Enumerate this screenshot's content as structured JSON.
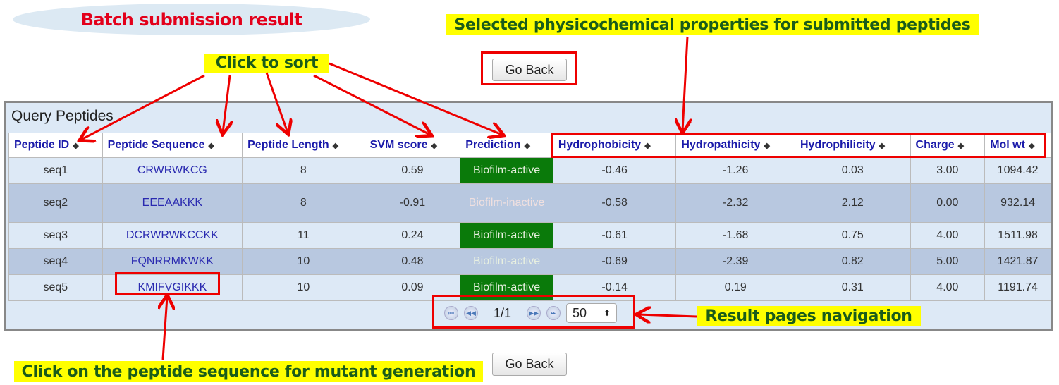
{
  "annotations": {
    "title": "Batch submission result",
    "click_to_sort": "Click to sort",
    "selected_props": "Selected physicochemical properties for submitted peptides",
    "navigation": "Result pages navigation",
    "mutant": "Click on the peptide sequence for mutant generation"
  },
  "go_back": "Go Back",
  "table": {
    "caption": "Query Peptides",
    "headers": [
      "Peptide ID",
      "Peptide Sequence",
      "Peptide Length",
      "SVM score",
      "Prediction",
      "Hydrophobicity",
      "Hydropathicity",
      "Hydrophilicity",
      "Charge",
      "Mol wt"
    ],
    "rows": [
      [
        "seq1",
        "CRWRWKCG",
        "8",
        "0.59",
        "Biofilm-active",
        "-0.46",
        "-1.26",
        "0.03",
        "3.00",
        "1094.42"
      ],
      [
        "seq2",
        "EEEAAKKK",
        "8",
        "-0.91",
        "Biofilm-inactive",
        "-0.58",
        "-2.32",
        "2.12",
        "0.00",
        "932.14"
      ],
      [
        "seq3",
        "DCRWRWKCCKK",
        "11",
        "0.24",
        "Biofilm-active",
        "-0.61",
        "-1.68",
        "0.75",
        "4.00",
        "1511.98"
      ],
      [
        "seq4",
        "FQNRRMKWKK",
        "10",
        "0.48",
        "Biofilm-active",
        "-0.69",
        "-2.39",
        "0.82",
        "5.00",
        "1421.87"
      ],
      [
        "seq5",
        "KMIFVGIKKK",
        "10",
        "0.09",
        "Biofilm-active",
        "-0.14",
        "0.19",
        "0.31",
        "4.00",
        "1191.74"
      ]
    ]
  },
  "pager": {
    "page": "1/1",
    "page_size": "50"
  }
}
